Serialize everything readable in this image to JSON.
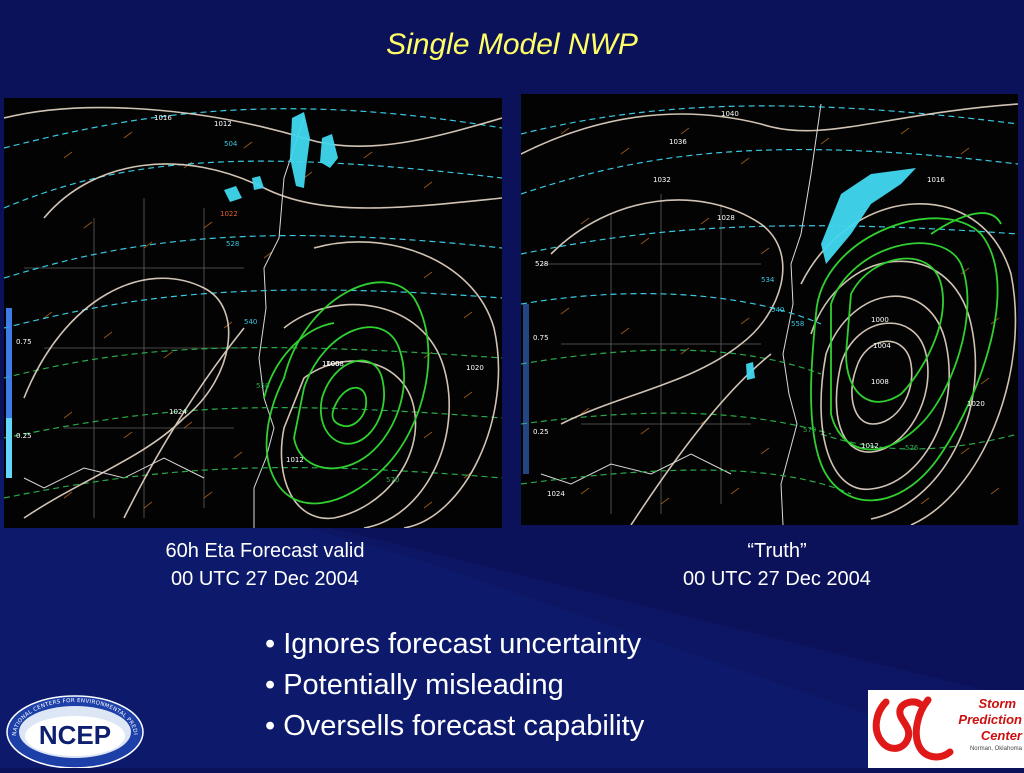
{
  "slide": {
    "title": "Single Model NWP"
  },
  "panels": [
    {
      "caption_line1": "60h Eta Forecast valid",
      "caption_line2": "00 UTC 27 Dec 2004",
      "contour_labels": [
        "1016",
        "1012",
        "504",
        "528",
        "540",
        "1024",
        "0.75",
        "0.25",
        "1008",
        "1000",
        "1012",
        "1020",
        "570",
        "558",
        "1022"
      ]
    },
    {
      "caption_line1": "“Truth”",
      "caption_line2": "00 UTC 27 Dec 2004",
      "contour_labels": [
        "1040",
        "1036",
        "1032",
        "1028",
        "1016",
        "0.75",
        "0.25",
        "1024",
        "1004",
        "1000",
        "1008",
        "1012",
        "1020",
        "528",
        "534",
        "540",
        "558",
        "570",
        "576"
      ]
    }
  ],
  "bullets": [
    "• Ignores forecast uncertainty",
    "• Potentially misleading",
    "• Oversells forecast capability"
  ],
  "logos": {
    "ncep_text": "NCEP",
    "ncep_ring_text": "NATIONAL CENTERS FOR ENVIRONMENTAL PREDICTION",
    "spc_line1": "Storm",
    "spc_line2": "Prediction",
    "spc_line3": "Center",
    "spc_line4": "Norman, Oklahoma"
  },
  "colors": {
    "background": "#0b1259",
    "title": "#ffff66",
    "isobar": "#e8d8c8",
    "thickness": "#38c8e0",
    "precip": "#30d030",
    "barbs": "#c87020",
    "snow": "#40d8f0"
  }
}
